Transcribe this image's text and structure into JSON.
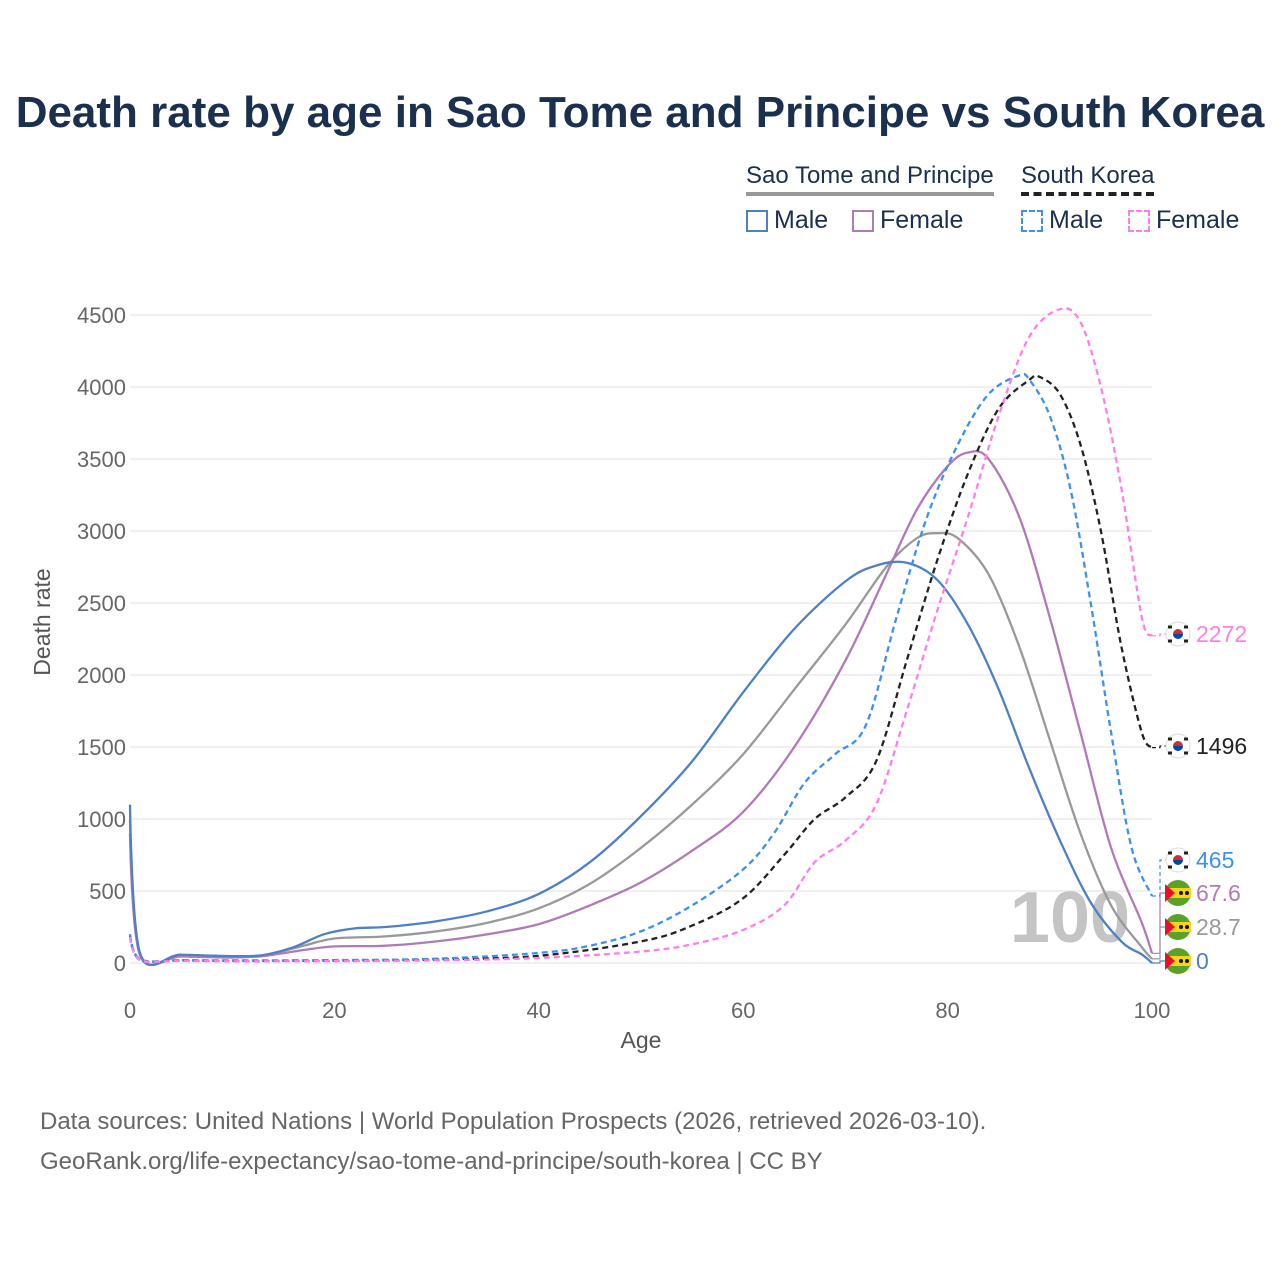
{
  "title": "Death rate by age in Sao Tome and Principe vs South Korea",
  "legend": {
    "group1": "Sao Tome and Principe",
    "group2": "South Korea",
    "male": "Male",
    "female": "Female"
  },
  "footer": {
    "line1": "Data sources: United Nations | World Population Prospects (2026, retrieved 2026-03-10).",
    "line2": "GeoRank.org/life-expectancy/sao-tome-and-principe/south-korea | CC BY"
  },
  "colors": {
    "stp_male": "#4f7fc6",
    "stp_female": "#b07ab8",
    "stp_total": "#999999",
    "kr_male": "#3f8fef",
    "kr_female": "#ff7fe8",
    "kr_total": "#222222",
    "title": "#1b2f4f"
  },
  "watermark": "100",
  "chart_data": {
    "type": "line",
    "title": "Death rate by age in Sao Tome and Principe vs South Korea",
    "xlabel": "Age",
    "ylabel": "Death rate",
    "xlim": [
      0,
      100
    ],
    "ylim": [
      0,
      4600
    ],
    "xticks": [
      0,
      20,
      40,
      60,
      80,
      100
    ],
    "yticks": [
      0,
      500,
      1000,
      1500,
      2000,
      2500,
      3000,
      3500,
      4000,
      4500
    ],
    "grid": true,
    "series": [
      {
        "name": "Sao Tome and Principe Male",
        "key": "stp_male",
        "dash": false,
        "points": [
          [
            0,
            1100
          ],
          [
            1,
            65
          ],
          [
            5,
            58
          ],
          [
            10,
            48
          ],
          [
            13,
            55
          ],
          [
            16,
            110
          ],
          [
            19,
            200
          ],
          [
            22,
            240
          ],
          [
            25,
            250
          ],
          [
            30,
            290
          ],
          [
            35,
            360
          ],
          [
            40,
            480
          ],
          [
            45,
            700
          ],
          [
            50,
            1020
          ],
          [
            55,
            1400
          ],
          [
            60,
            1880
          ],
          [
            65,
            2320
          ],
          [
            70,
            2650
          ],
          [
            73,
            2760
          ],
          [
            76,
            2780
          ],
          [
            79,
            2660
          ],
          [
            82,
            2350
          ],
          [
            85,
            1900
          ],
          [
            88,
            1350
          ],
          [
            91,
            850
          ],
          [
            94,
            420
          ],
          [
            97,
            150
          ],
          [
            99,
            60
          ],
          [
            100,
            0
          ]
        ],
        "end_value": "0"
      },
      {
        "name": "Sao Tome and Principe Female",
        "key": "stp_female",
        "dash": false,
        "points": [
          [
            0,
            900
          ],
          [
            1,
            50
          ],
          [
            5,
            45
          ],
          [
            10,
            38
          ],
          [
            13,
            48
          ],
          [
            17,
            90
          ],
          [
            20,
            115
          ],
          [
            25,
            120
          ],
          [
            30,
            150
          ],
          [
            35,
            200
          ],
          [
            40,
            270
          ],
          [
            45,
            400
          ],
          [
            50,
            560
          ],
          [
            55,
            780
          ],
          [
            60,
            1050
          ],
          [
            65,
            1500
          ],
          [
            70,
            2100
          ],
          [
            74,
            2700
          ],
          [
            77,
            3150
          ],
          [
            80,
            3450
          ],
          [
            82,
            3545
          ],
          [
            84,
            3500
          ],
          [
            87,
            3100
          ],
          [
            90,
            2400
          ],
          [
            93,
            1600
          ],
          [
            96,
            800
          ],
          [
            99,
            280
          ],
          [
            100,
            67.6
          ]
        ],
        "end_value": "67.6"
      },
      {
        "name": "Sao Tome and Principe Total",
        "key": "stp_total",
        "dash": false,
        "points": [
          [
            0,
            1000
          ],
          [
            1,
            57
          ],
          [
            5,
            52
          ],
          [
            10,
            43
          ],
          [
            13,
            52
          ],
          [
            17,
            120
          ],
          [
            20,
            170
          ],
          [
            25,
            185
          ],
          [
            30,
            220
          ],
          [
            35,
            280
          ],
          [
            40,
            380
          ],
          [
            45,
            550
          ],
          [
            50,
            800
          ],
          [
            55,
            1100
          ],
          [
            60,
            1450
          ],
          [
            65,
            1900
          ],
          [
            70,
            2350
          ],
          [
            74,
            2750
          ],
          [
            77,
            2950
          ],
          [
            79,
            2985
          ],
          [
            81,
            2950
          ],
          [
            84,
            2700
          ],
          [
            87,
            2200
          ],
          [
            90,
            1550
          ],
          [
            93,
            900
          ],
          [
            96,
            400
          ],
          [
            99,
            110
          ],
          [
            100,
            28.7
          ]
        ],
        "end_value": "28.7"
      },
      {
        "name": "South Korea Male",
        "key": "kr_male",
        "dash": true,
        "points": [
          [
            0,
            200
          ],
          [
            1,
            25
          ],
          [
            5,
            20
          ],
          [
            10,
            18
          ],
          [
            20,
            20
          ],
          [
            30,
            30
          ],
          [
            40,
            70
          ],
          [
            45,
            120
          ],
          [
            50,
            220
          ],
          [
            55,
            400
          ],
          [
            60,
            650
          ],
          [
            63,
            900
          ],
          [
            66,
            1250
          ],
          [
            69,
            1450
          ],
          [
            72,
            1650
          ],
          [
            75,
            2400
          ],
          [
            78,
            3100
          ],
          [
            81,
            3600
          ],
          [
            84,
            3950
          ],
          [
            87,
            4080
          ],
          [
            88,
            4050
          ],
          [
            90,
            3800
          ],
          [
            92,
            3300
          ],
          [
            94,
            2500
          ],
          [
            96,
            1600
          ],
          [
            98,
            800
          ],
          [
            100,
            465
          ]
        ],
        "end_value": "465"
      },
      {
        "name": "South Korea Female",
        "key": "kr_female",
        "dash": true,
        "points": [
          [
            0,
            180
          ],
          [
            1,
            20
          ],
          [
            5,
            15
          ],
          [
            10,
            12
          ],
          [
            20,
            13
          ],
          [
            30,
            18
          ],
          [
            40,
            35
          ],
          [
            50,
            80
          ],
          [
            55,
            130
          ],
          [
            60,
            230
          ],
          [
            64,
            400
          ],
          [
            67,
            700
          ],
          [
            70,
            850
          ],
          [
            73,
            1100
          ],
          [
            76,
            1750
          ],
          [
            79,
            2450
          ],
          [
            82,
            3100
          ],
          [
            85,
            3800
          ],
          [
            88,
            4350
          ],
          [
            91,
            4540
          ],
          [
            93,
            4450
          ],
          [
            95,
            4000
          ],
          [
            97,
            3300
          ],
          [
            99,
            2400
          ],
          [
            100,
            2272
          ]
        ],
        "end_value": "2272"
      },
      {
        "name": "South Korea Total",
        "key": "kr_total",
        "dash": true,
        "points": [
          [
            0,
            190
          ],
          [
            1,
            22
          ],
          [
            5,
            18
          ],
          [
            10,
            15
          ],
          [
            20,
            16
          ],
          [
            30,
            24
          ],
          [
            40,
            50
          ],
          [
            50,
            150
          ],
          [
            55,
            260
          ],
          [
            60,
            450
          ],
          [
            64,
            750
          ],
          [
            67,
            1000
          ],
          [
            70,
            1150
          ],
          [
            73,
            1400
          ],
          [
            76,
            2100
          ],
          [
            79,
            2800
          ],
          [
            82,
            3400
          ],
          [
            85,
            3850
          ],
          [
            88,
            4050
          ],
          [
            89,
            4070
          ],
          [
            91,
            3950
          ],
          [
            93,
            3600
          ],
          [
            95,
            3000
          ],
          [
            97,
            2200
          ],
          [
            99,
            1600
          ],
          [
            100,
            1496
          ]
        ],
        "end_value": "1496"
      }
    ]
  }
}
